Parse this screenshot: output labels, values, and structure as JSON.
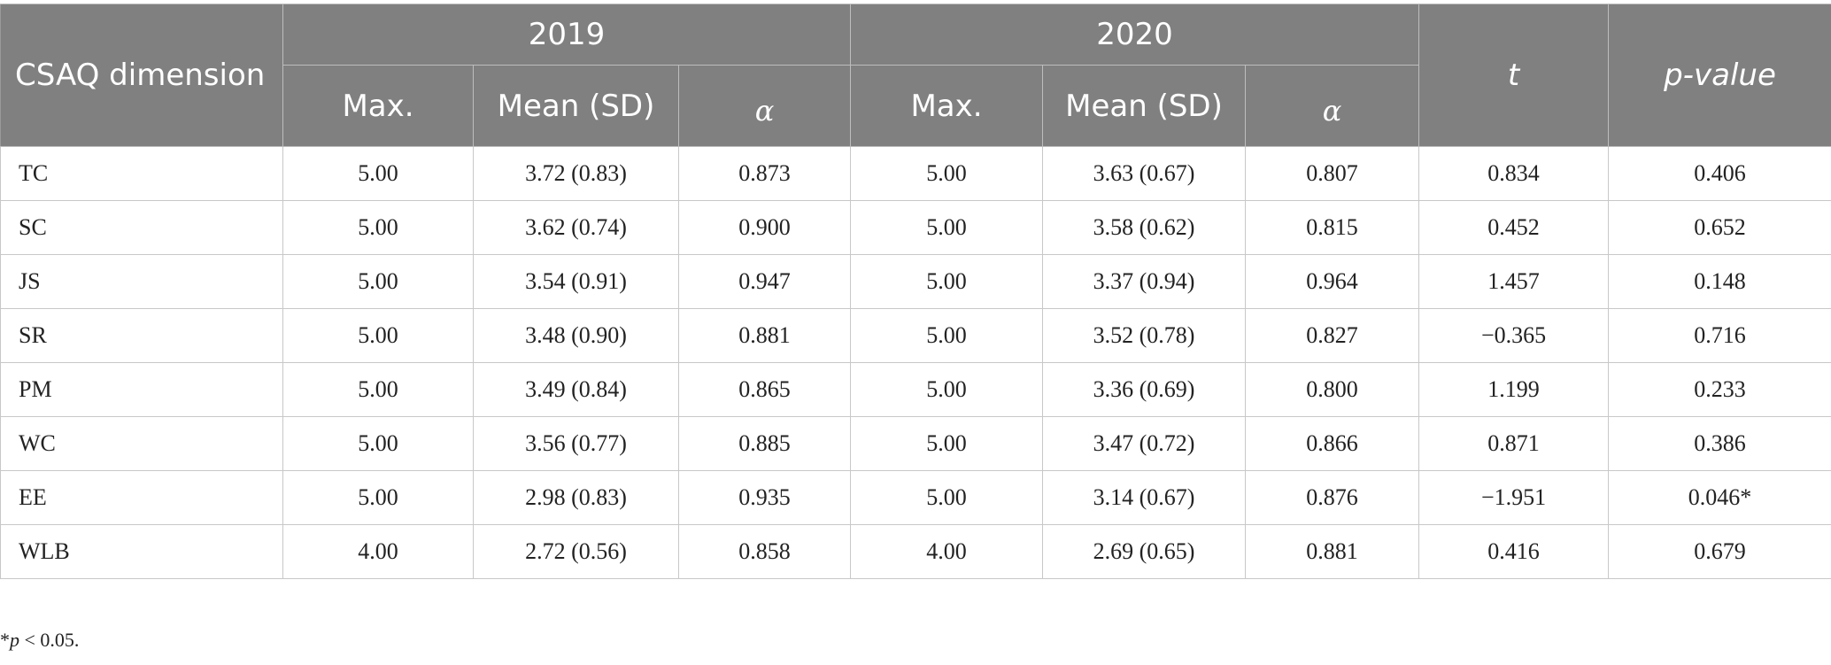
{
  "table": {
    "header": {
      "dimension": "CSAQ dimension",
      "year_2019": "2019",
      "year_2020": "2020",
      "t": "t",
      "p_value": "p-value",
      "max": "Max.",
      "mean_sd": "Mean (SD)",
      "alpha": "α"
    },
    "rows": [
      {
        "dimension": "TC",
        "max_2019": "5.00",
        "mean_2019": "3.72 (0.83)",
        "alpha_2019": "0.873",
        "max_2020": "5.00",
        "mean_2020": "3.63 (0.67)",
        "alpha_2020": "0.807",
        "t": "0.834",
        "p": "0.406"
      },
      {
        "dimension": "SC",
        "max_2019": "5.00",
        "mean_2019": "3.62 (0.74)",
        "alpha_2019": "0.900",
        "max_2020": "5.00",
        "mean_2020": "3.58 (0.62)",
        "alpha_2020": "0.815",
        "t": "0.452",
        "p": "0.652"
      },
      {
        "dimension": "JS",
        "max_2019": "5.00",
        "mean_2019": "3.54 (0.91)",
        "alpha_2019": "0.947",
        "max_2020": "5.00",
        "mean_2020": "3.37 (0.94)",
        "alpha_2020": "0.964",
        "t": "1.457",
        "p": "0.148"
      },
      {
        "dimension": "SR",
        "max_2019": "5.00",
        "mean_2019": "3.48 (0.90)",
        "alpha_2019": "0.881",
        "max_2020": "5.00",
        "mean_2020": "3.52 (0.78)",
        "alpha_2020": "0.827",
        "t": "−0.365",
        "p": "0.716"
      },
      {
        "dimension": "PM",
        "max_2019": "5.00",
        "mean_2019": "3.49 (0.84)",
        "alpha_2019": "0.865",
        "max_2020": "5.00",
        "mean_2020": "3.36 (0.69)",
        "alpha_2020": "0.800",
        "t": "1.199",
        "p": "0.233"
      },
      {
        "dimension": "WC",
        "max_2019": "5.00",
        "mean_2019": "3.56 (0.77)",
        "alpha_2019": "0.885",
        "max_2020": "5.00",
        "mean_2020": "3.47 (0.72)",
        "alpha_2020": "0.866",
        "t": "0.871",
        "p": "0.386"
      },
      {
        "dimension": "EE",
        "max_2019": "5.00",
        "mean_2019": "2.98 (0.83)",
        "alpha_2019": "0.935",
        "max_2020": "5.00",
        "mean_2020": "3.14 (0.67)",
        "alpha_2020": "0.876",
        "t": "−1.951",
        "p": "0.046*"
      },
      {
        "dimension": "WLB",
        "max_2019": "4.00",
        "mean_2019": "2.72 (0.56)",
        "alpha_2019": "0.858",
        "max_2020": "4.00",
        "mean_2020": "2.69 (0.65)",
        "alpha_2020": "0.881",
        "t": "0.416",
        "p": "0.679"
      }
    ]
  },
  "footnote": {
    "star": "*",
    "p": "p",
    "condition": " < 0.05."
  }
}
